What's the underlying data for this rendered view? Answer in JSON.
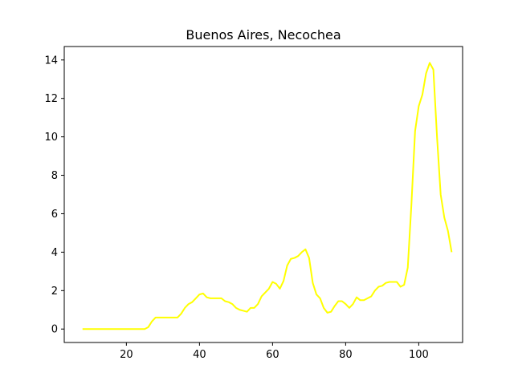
{
  "chart_data": {
    "type": "line",
    "title": "Buenos Aires, Necochea",
    "xlabel": "",
    "ylabel": "",
    "xlim": [
      3,
      112
    ],
    "ylim": [
      -0.7,
      14.7
    ],
    "xticks": [
      20,
      40,
      60,
      80,
      100
    ],
    "yticks": [
      0,
      2,
      4,
      6,
      8,
      10,
      12,
      14
    ],
    "grid": false,
    "line_color": "#ffff00",
    "series": [
      {
        "x": [
          8,
          10,
          12,
          14,
          16,
          18,
          20,
          22,
          24,
          25,
          26,
          27,
          28,
          29,
          30,
          31,
          32,
          33,
          34,
          35,
          36,
          37,
          38,
          39,
          40,
          41,
          42,
          43,
          44,
          45,
          46,
          47,
          48,
          49,
          50,
          51,
          52,
          53,
          54,
          55,
          56,
          57,
          58,
          59,
          60,
          61,
          62,
          63,
          64,
          65,
          66,
          67,
          68,
          69,
          70,
          71,
          72,
          73,
          74,
          75,
          76,
          77,
          78,
          79,
          80,
          81,
          82,
          83,
          84,
          85,
          86,
          87,
          88,
          89,
          90,
          91,
          92,
          93,
          94,
          95,
          96,
          97,
          98,
          99,
          100,
          101,
          102,
          103,
          104,
          105,
          106,
          107,
          108,
          109
        ],
        "y": [
          0,
          0,
          0,
          0,
          0,
          0,
          0,
          0,
          0,
          0,
          0.1,
          0.4,
          0.6,
          0.6,
          0.6,
          0.6,
          0.6,
          0.6,
          0.6,
          0.8,
          1.1,
          1.3,
          1.4,
          1.6,
          1.8,
          1.85,
          1.65,
          1.6,
          1.6,
          1.6,
          1.6,
          1.45,
          1.4,
          1.3,
          1.1,
          1.0,
          0.95,
          0.9,
          1.1,
          1.1,
          1.3,
          1.7,
          1.9,
          2.1,
          2.45,
          2.35,
          2.1,
          2.5,
          3.3,
          3.65,
          3.7,
          3.8,
          4.0,
          4.15,
          3.7,
          2.4,
          1.8,
          1.6,
          1.1,
          0.85,
          0.9,
          1.2,
          1.45,
          1.45,
          1.3,
          1.1,
          1.3,
          1.65,
          1.5,
          1.5,
          1.6,
          1.7,
          2.0,
          2.2,
          2.25,
          2.4,
          2.45,
          2.45,
          2.45,
          2.2,
          2.3,
          3.2,
          6.5,
          10.3,
          11.6,
          12.2,
          13.3,
          13.85,
          13.5,
          10.0,
          7.0,
          5.8,
          5.1,
          4.0
        ]
      }
    ]
  }
}
